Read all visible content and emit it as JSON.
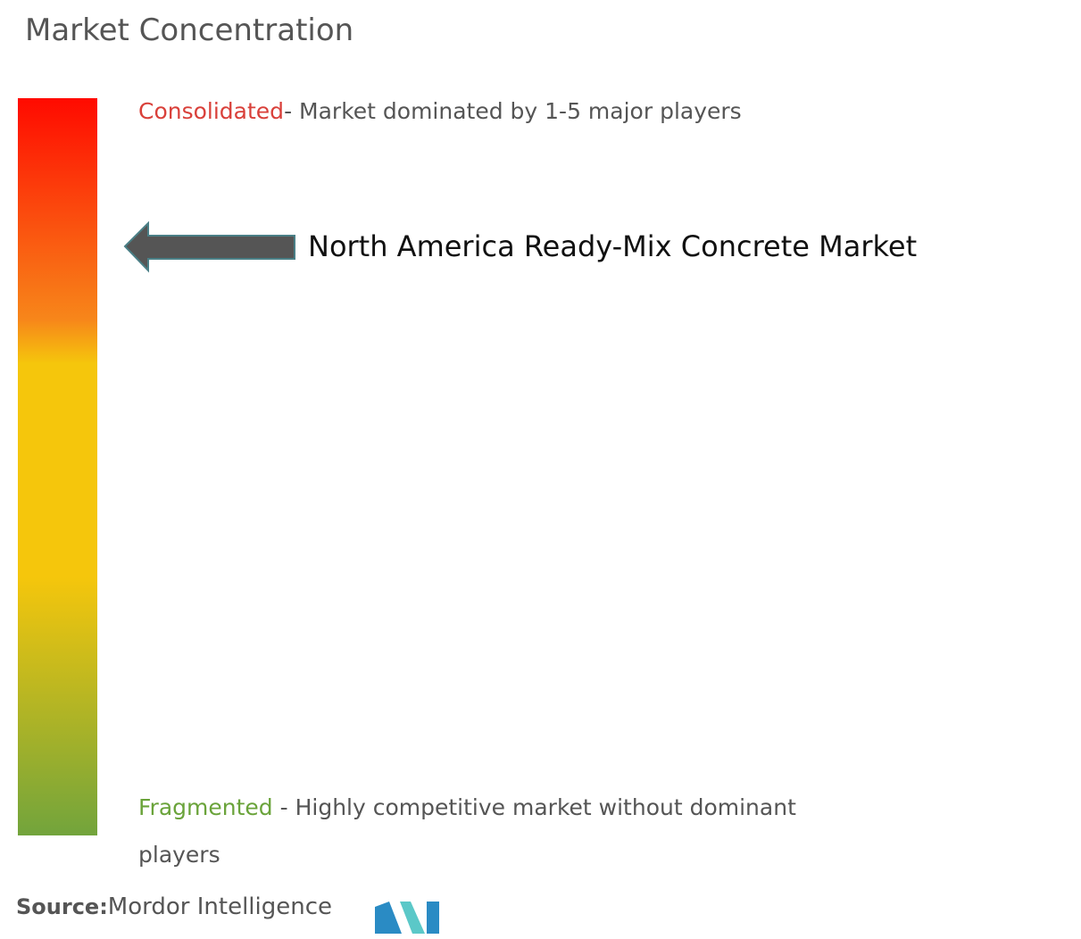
{
  "title": "Market Concentration",
  "consolidated": {
    "label": "Consolidated",
    "description": "- Market dominated by 1-5 major players"
  },
  "market": "North America Ready-Mix Concrete Market",
  "fragmented": {
    "label": "Fragmented",
    "description": "- Highly competitive market without dominant",
    "description_cont": "players"
  },
  "source": {
    "label": "Source:",
    "text": "Mordor Intelligence"
  }
}
